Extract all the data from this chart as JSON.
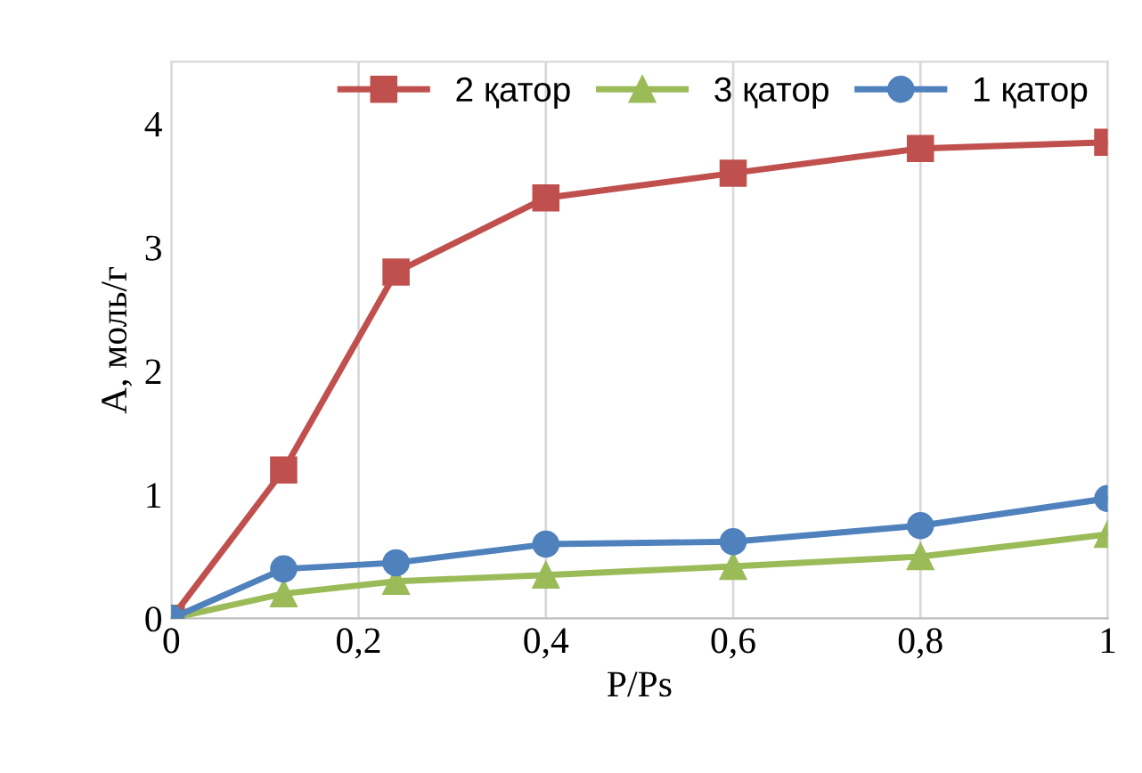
{
  "chart_data": {
    "type": "line",
    "xlabel": "P/Ps",
    "ylabel": "A, моль/г",
    "x": [
      0,
      0.12,
      0.24,
      0.4,
      0.6,
      0.8,
      1
    ],
    "series": [
      {
        "name": "2 қатор",
        "color": "#c0504d",
        "marker": "square",
        "values": [
          0,
          1.2,
          2.8,
          3.4,
          3.6,
          3.8,
          3.85
        ]
      },
      {
        "name": "3 қатор",
        "color": "#9bbb59",
        "marker": "triangle",
        "values": [
          0,
          0.2,
          0.3,
          0.35,
          0.42,
          0.5,
          0.68
        ]
      },
      {
        "name": "1 қатор",
        "color": "#4f81bd",
        "marker": "circle",
        "values": [
          0,
          0.4,
          0.45,
          0.6,
          0.62,
          0.75,
          0.97
        ]
      }
    ],
    "xlim": [
      0,
      1
    ],
    "ylim": [
      0,
      4.5
    ],
    "xticks": [
      0,
      {
        "value": 0.2,
        "label": "0,2"
      },
      {
        "value": 0.4,
        "label": "0,4"
      },
      {
        "value": 0.6,
        "label": "0,6"
      },
      {
        "value": 0.8,
        "label": "0,8"
      },
      1
    ],
    "yticks": [
      0,
      1,
      2,
      3,
      4
    ],
    "grid": "x",
    "legend": "top",
    "line_style": "solid"
  }
}
